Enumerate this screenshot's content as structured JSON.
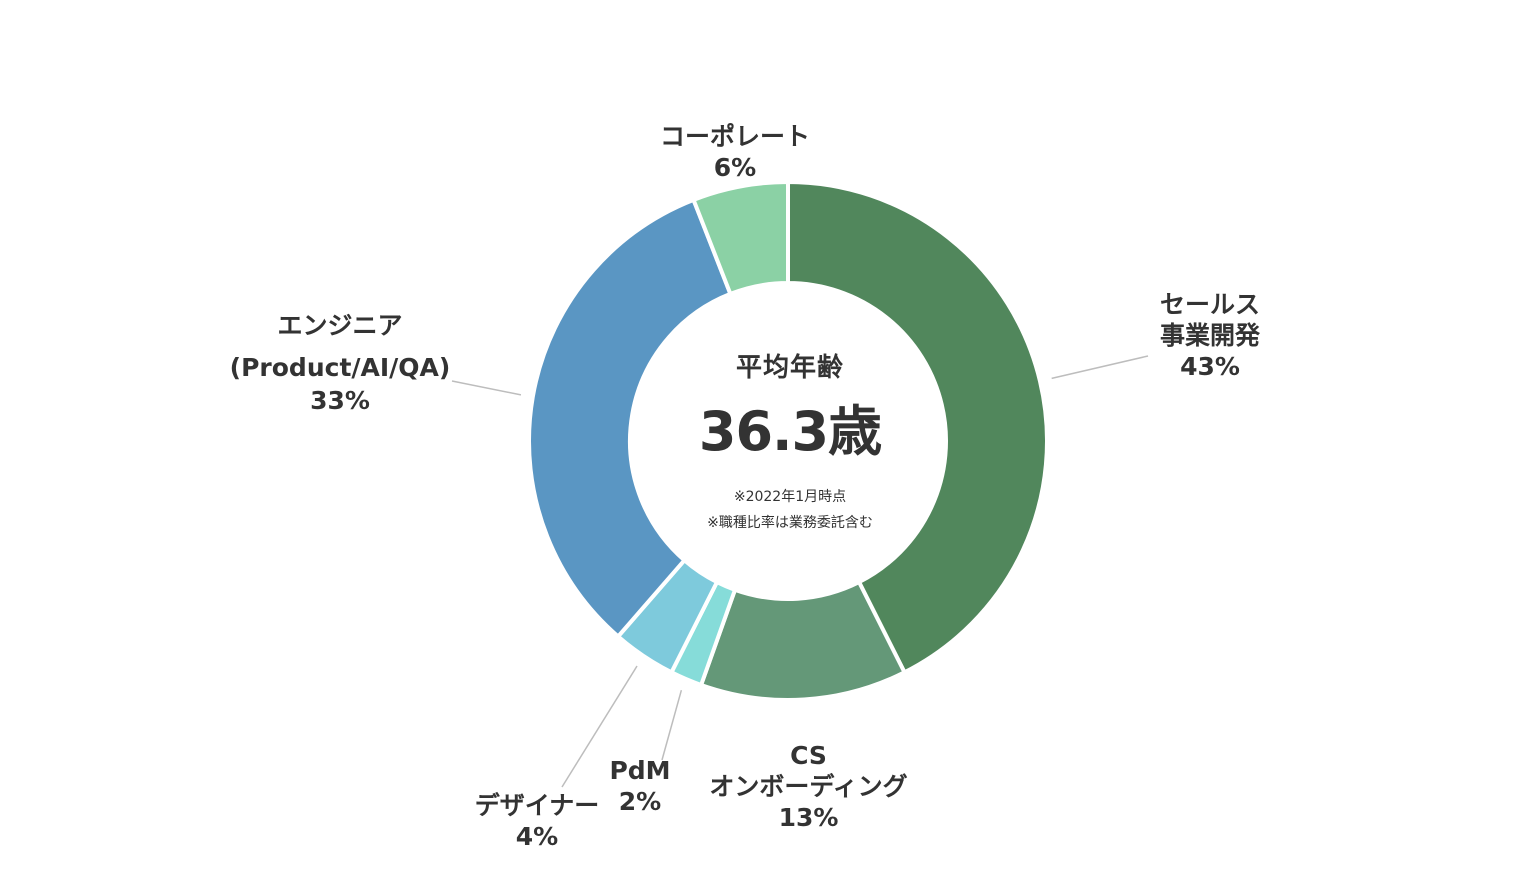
{
  "chart_data": {
    "type": "pie",
    "center": {
      "label": "平均年齢",
      "value": "36.3歳",
      "notes": [
        "※2022年1月時点",
        "※職種比率は業務委託含む"
      ]
    },
    "slices": [
      {
        "lines": [
          "セールス",
          "事業開発"
        ],
        "value_text": "43%",
        "value": 43,
        "color": "#51875c"
      },
      {
        "lines": [
          "CS",
          "オンボーディング"
        ],
        "value_text": "13%",
        "value": 13,
        "color": "#649878"
      },
      {
        "lines": [
          "PdM"
        ],
        "value_text": "2%",
        "value": 2,
        "color": "#86dcd9"
      },
      {
        "lines": [
          "デザイナー"
        ],
        "value_text": "4%",
        "value": 4,
        "color": "#7ecadc"
      },
      {
        "lines": [
          "エンジニア",
          "(Product/AI/QA)"
        ],
        "value_text": "33%",
        "value": 33,
        "color": "#5a96c3"
      },
      {
        "lines": [
          "コーポレート"
        ],
        "value_text": "6%",
        "value": 6,
        "color": "#8bd1a5"
      }
    ]
  }
}
